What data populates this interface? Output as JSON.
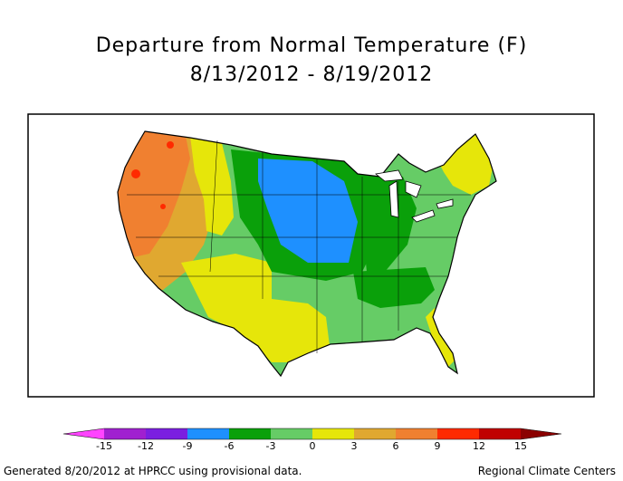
{
  "title": "Departure from Normal Temperature (F)",
  "subtitle": "8/13/2012 - 8/19/2012",
  "legend": {
    "ticks": [
      "-15",
      "-12",
      "-9",
      "-6",
      "-3",
      "0",
      "3",
      "6",
      "9",
      "12",
      "15"
    ],
    "colors": [
      "#ff44ff",
      "#a020d0",
      "#7b1fe0",
      "#1e90ff",
      "#0aa00a",
      "#66cc66",
      "#e6e60a",
      "#e0a830",
      "#f08030",
      "#ff2a00",
      "#c00000",
      "#8b0000"
    ]
  },
  "footer": {
    "left": "Generated 8/20/2012 at HPRCC using provisional data.",
    "right": "Regional Climate Centers"
  }
}
